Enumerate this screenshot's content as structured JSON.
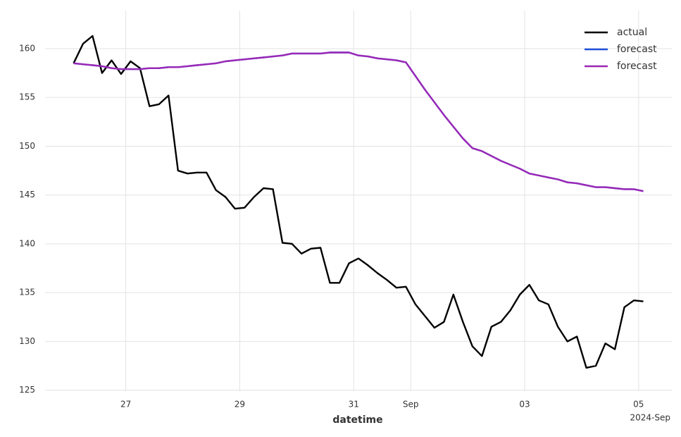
{
  "chart_data": {
    "type": "line",
    "xlabel": "datetime",
    "x_offset_label": "2024-Sep",
    "x": [
      "2024-08-26 02:00",
      "2024-08-26 06:00",
      "2024-08-26 10:00",
      "2024-08-26 14:00",
      "2024-08-26 18:00",
      "2024-08-26 22:00",
      "2024-08-27 02:00",
      "2024-08-27 06:00",
      "2024-08-27 10:00",
      "2024-08-27 14:00",
      "2024-08-27 18:00",
      "2024-08-27 22:00",
      "2024-08-28 02:00",
      "2024-08-28 06:00",
      "2024-08-28 10:00",
      "2024-08-28 14:00",
      "2024-08-28 18:00",
      "2024-08-28 22:00",
      "2024-08-29 02:00",
      "2024-08-29 06:00",
      "2024-08-29 10:00",
      "2024-08-29 14:00",
      "2024-08-29 18:00",
      "2024-08-29 22:00",
      "2024-08-30 02:00",
      "2024-08-30 06:00",
      "2024-08-30 10:00",
      "2024-08-30 14:00",
      "2024-08-30 18:00",
      "2024-08-30 22:00",
      "2024-08-31 02:00",
      "2024-08-31 06:00",
      "2024-08-31 10:00",
      "2024-08-31 14:00",
      "2024-08-31 18:00",
      "2024-08-31 22:00",
      "2024-09-01 02:00",
      "2024-09-01 06:00",
      "2024-09-01 10:00",
      "2024-09-01 14:00",
      "2024-09-01 18:00",
      "2024-09-01 22:00",
      "2024-09-02 02:00",
      "2024-09-02 06:00",
      "2024-09-02 10:00",
      "2024-09-02 14:00",
      "2024-09-02 18:00",
      "2024-09-02 22:00",
      "2024-09-03 02:00",
      "2024-09-03 06:00",
      "2024-09-03 10:00",
      "2024-09-03 14:00",
      "2024-09-03 18:00",
      "2024-09-03 22:00",
      "2024-09-04 02:00",
      "2024-09-04 06:00",
      "2024-09-04 10:00",
      "2024-09-04 14:00",
      "2024-09-04 18:00",
      "2024-09-04 22:00",
      "2024-09-05 02:00"
    ],
    "series": [
      {
        "name": "actual",
        "color": "#000000",
        "values": [
          158.5,
          160.5,
          161.3,
          157.5,
          158.8,
          157.4,
          158.7,
          158,
          154.1,
          154.3,
          155.2,
          147.5,
          147.2,
          147.3,
          147.3,
          145.5,
          144.8,
          143.6,
          143.7,
          144.8,
          145.7,
          145.6,
          140.1,
          140,
          139,
          139.5,
          139.6,
          136,
          136,
          138,
          138.5,
          137.8,
          137,
          136.3,
          135.5,
          135.6,
          133.8,
          132.6,
          131.4,
          132,
          134.8,
          132,
          129.5,
          128.5,
          131.5,
          132,
          133.2,
          134.8,
          135.8,
          134.2,
          133.8,
          131.5,
          130,
          130.5,
          127.3,
          127.5,
          129.8,
          129.2,
          133.5,
          134.2,
          134.1
        ]
      },
      {
        "name": "forecast",
        "color": "#1f4fd8",
        "values": [
          158.5,
          158.4,
          158.3,
          158.2,
          158,
          157.9,
          157.9,
          157.9,
          158,
          158,
          158.1,
          158.1,
          158.2,
          158.3,
          158.4,
          158.5,
          158.7,
          158.8,
          158.9,
          159,
          159.1,
          159.2,
          159.3,
          159.5,
          159.5,
          159.5,
          159.5,
          159.6,
          159.6,
          159.6,
          159.3,
          159.2,
          159,
          158.9,
          158.8,
          158.6,
          157.2,
          155.8,
          154.5,
          153.2,
          152,
          150.8,
          149.8,
          149.5,
          149,
          148.5,
          148.1,
          147.7,
          147.2,
          147,
          146.8,
          146.6,
          146.3,
          146.2,
          146,
          145.8,
          145.8,
          145.7,
          145.6,
          145.6,
          145.4
        ]
      },
      {
        "name": "forecast",
        "color": "#9b27b6",
        "values": [
          158.5,
          158.4,
          158.3,
          158.2,
          158,
          157.9,
          157.9,
          157.9,
          158,
          158,
          158.1,
          158.1,
          158.2,
          158.3,
          158.4,
          158.5,
          158.7,
          158.8,
          158.9,
          159,
          159.1,
          159.2,
          159.3,
          159.5,
          159.5,
          159.5,
          159.5,
          159.6,
          159.6,
          159.6,
          159.3,
          159.2,
          159,
          158.9,
          158.8,
          158.6,
          157.2,
          155.8,
          154.5,
          153.2,
          152,
          150.8,
          149.8,
          149.5,
          149,
          148.5,
          148.1,
          147.7,
          147.2,
          147,
          146.8,
          146.6,
          146.3,
          146.2,
          146,
          145.8,
          145.8,
          145.7,
          145.6,
          145.6,
          145.4
        ]
      }
    ],
    "xlim": [
      "2024-08-25 14:00",
      "2024-09-05 14:00"
    ],
    "xticks": [
      {
        "value": "2024-08-27 00:00",
        "label": "27"
      },
      {
        "value": "2024-08-29 00:00",
        "label": "29"
      },
      {
        "value": "2024-08-31 00:00",
        "label": "31"
      },
      {
        "value": "2024-09-01 00:00",
        "label": "Sep"
      },
      {
        "value": "2024-09-03 00:00",
        "label": "03"
      },
      {
        "value": "2024-09-05 00:00",
        "label": "05"
      }
    ],
    "ylim": [
      124.9,
      163.9
    ],
    "yticks": [
      125,
      130,
      135,
      140,
      145,
      150,
      155,
      160
    ],
    "grid": true,
    "legend": "upper right"
  }
}
